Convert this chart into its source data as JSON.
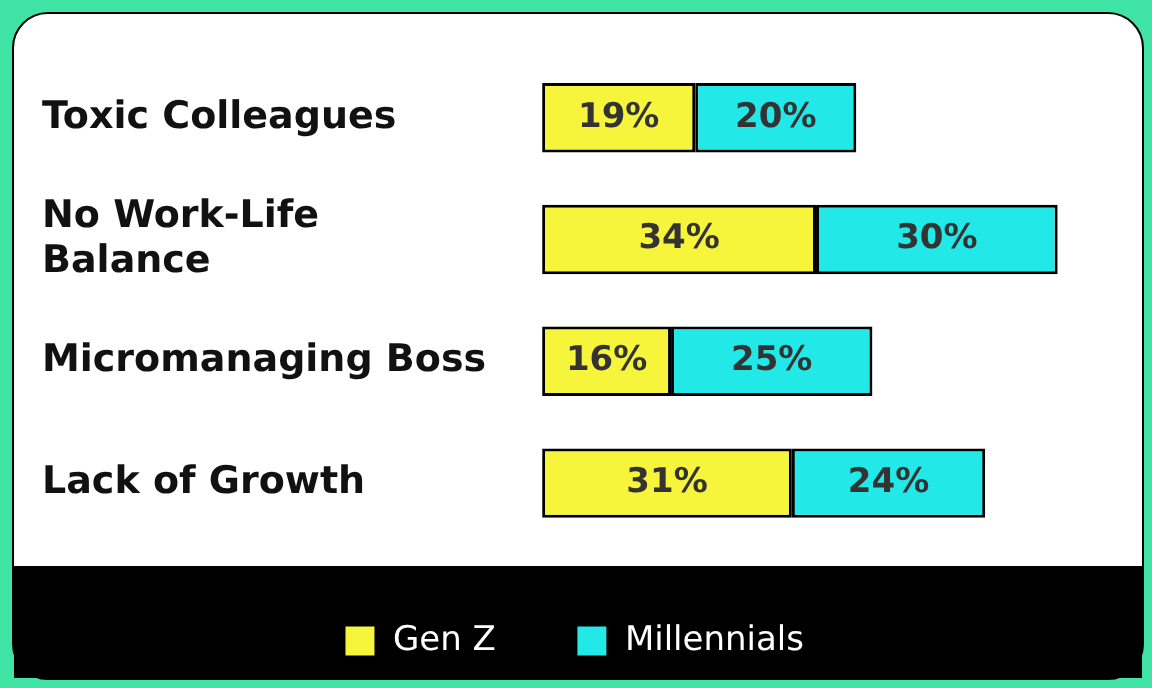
{
  "chart_data": {
    "type": "bar",
    "orientation": "horizontal",
    "stacked": true,
    "categories": [
      "Toxic Colleagues",
      "No Work-Life Balance",
      "Micromanaging Boss",
      "Lack of Growth"
    ],
    "series": [
      {
        "name": "Gen Z",
        "color": "#f7f43c",
        "values": [
          19,
          34,
          16,
          31
        ],
        "value_labels": [
          "19%",
          "34%",
          "16%",
          "31%"
        ]
      },
      {
        "name": "Millennials",
        "color": "#22e8e8",
        "values": [
          20,
          30,
          25,
          24
        ],
        "value_labels": [
          "20%",
          "30%",
          "25%",
          "24%"
        ]
      }
    ],
    "tick_labels": "y",
    "grid": false,
    "legend": "bottom"
  }
}
